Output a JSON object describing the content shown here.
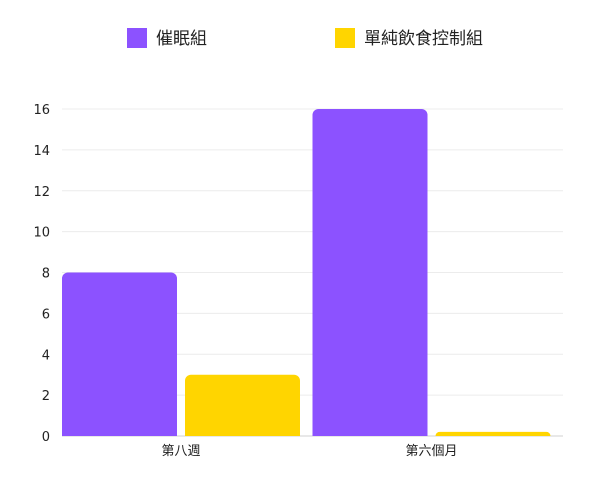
{
  "chart_data": {
    "type": "bar",
    "categories": [
      "第八週",
      "第六個月"
    ],
    "series": [
      {
        "name": "催眠組",
        "values": [
          8,
          16
        ],
        "color": "#8c52ff"
      },
      {
        "name": "單純飲食控制組",
        "values": [
          3,
          0.2
        ],
        "color": "#ffd500"
      }
    ],
    "yticks": [
      0,
      2,
      4,
      6,
      8,
      10,
      12,
      14,
      16
    ],
    "ylim": [
      0,
      16
    ],
    "grid": true,
    "legend_position": "top"
  }
}
